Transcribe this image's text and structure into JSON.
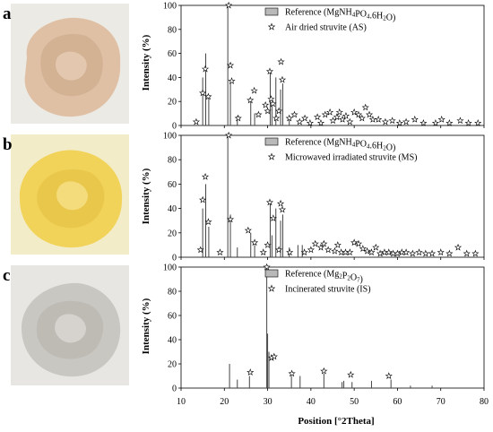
{
  "panels": [
    {
      "letter": "a",
      "color": "#dfc0a4",
      "shade": "#c9a587"
    },
    {
      "letter": "b",
      "color": "#f2d35a",
      "shade": "#e0bb3c"
    },
    {
      "letter": "c",
      "color": "#c9c7c2",
      "shade": "#b3b0aa"
    }
  ],
  "chart_data": {
    "type": "bar",
    "xlabel": "Position [°2Theta]",
    "x_ticks": [
      10,
      20,
      30,
      40,
      50,
      60,
      70,
      80
    ],
    "xlim": [
      10,
      80
    ],
    "y_ticks": [
      0,
      20,
      40,
      60,
      80,
      100
    ],
    "ylabel": "Intensity (%)",
    "plots": [
      {
        "ylim": [
          0,
          100
        ],
        "legend_ref_pre": "Reference (MgNH",
        "legend_ref_sub1": "4",
        "legend_ref_mid": "PO",
        "legend_ref_sub2": "4",
        "legend_ref_post": ".6H",
        "legend_ref_sub3": "2",
        "legend_ref_end": "O)",
        "legend_sample": "Air dried struvite (AS)",
        "reference": {
          "x": [
            15.0,
            15.7,
            16.4,
            20.8,
            21.4,
            23.0,
            26.1,
            27.0,
            30.6,
            31.0,
            31.9,
            33.0,
            33.5,
            35.0
          ],
          "y": [
            40,
            60,
            25,
            100,
            35,
            8,
            20,
            10,
            45,
            18,
            40,
            30,
            35,
            8
          ]
        },
        "sample": {
          "x": [
            13.5,
            15.0,
            15.6,
            16.3,
            21.0,
            21.4,
            21.7,
            23.2,
            26.0,
            26.9,
            27.9,
            29.5,
            30.0,
            30.5,
            30.8,
            31.2,
            32.0,
            32.6,
            33.1,
            33.4,
            35.0,
            36.2,
            37.4,
            38.6,
            39.8,
            41.5,
            42.3,
            43.3,
            44.4,
            45.1,
            46.0,
            46.6,
            47.3,
            48.1,
            49.0,
            50.0,
            51.0,
            51.8,
            52.6,
            53.5,
            54.3,
            55.6,
            57.2,
            58.8,
            60.5,
            62.0,
            64.0,
            66.0,
            68.8,
            70.2,
            72.0,
            74.5,
            76.4,
            78.6
          ],
          "y": [
            3,
            27,
            47,
            24,
            100,
            50,
            37,
            6,
            21,
            29,
            9,
            17,
            12,
            45,
            22,
            18,
            6,
            12,
            53,
            38,
            6,
            9,
            3,
            6,
            2,
            7,
            2,
            9,
            11,
            4,
            7,
            11,
            5,
            8,
            3,
            11,
            9,
            6,
            15,
            9,
            5,
            5,
            3,
            4,
            2,
            3,
            5,
            2,
            2,
            5,
            2,
            4,
            2,
            2
          ]
        }
      },
      {
        "ylim": [
          0,
          100
        ],
        "legend_ref_pre": "Reference (MgNH",
        "legend_ref_sub1": "4",
        "legend_ref_mid": "PO",
        "legend_ref_sub2": "4",
        "legend_ref_post": ".6H",
        "legend_ref_sub3": "2",
        "legend_ref_end": "O)",
        "legend_sample": "Microwaved irradiated struvite (MS)",
        "reference": {
          "x": [
            15.0,
            15.7,
            16.4,
            20.8,
            21.4,
            23.0,
            26.1,
            27.0,
            30.6,
            31.0,
            31.9,
            33.0,
            33.5,
            35.0,
            37.0,
            38.0
          ],
          "y": [
            40,
            60,
            25,
            100,
            35,
            8,
            20,
            10,
            45,
            18,
            40,
            30,
            35,
            8,
            10,
            10
          ]
        },
        "sample": {
          "x": [
            14.5,
            15.0,
            15.6,
            16.3,
            19.0,
            21.0,
            21.4,
            25.5,
            27.0,
            29.0,
            30.0,
            30.5,
            31.3,
            32.6,
            33.0,
            33.4,
            35.1,
            38.5,
            40.0,
            41.0,
            42.3,
            43.0,
            44.0,
            45.5,
            46.2,
            47.0,
            48.0,
            49.0,
            50.0,
            51.0,
            52.0,
            53.0,
            54.0,
            55.0,
            56.0,
            57.0,
            58.0,
            59.0,
            60.0,
            61.0,
            62.0,
            63.5,
            65.0,
            66.5,
            68.0,
            70.0,
            72.0,
            74.0,
            76.0,
            78.0
          ],
          "y": [
            6,
            47,
            66,
            29,
            4,
            100,
            31,
            22,
            12,
            4,
            10,
            45,
            32,
            6,
            44,
            39,
            4,
            4,
            6,
            11,
            8,
            11,
            6,
            5,
            10,
            4,
            4,
            4,
            12,
            11,
            7,
            5,
            4,
            8,
            3,
            4,
            4,
            3,
            3,
            4,
            4,
            3,
            4,
            3,
            3,
            4,
            3,
            8,
            3,
            3
          ]
        }
      },
      {
        "ylim": [
          0,
          100
        ],
        "legend_ref_pre": "Reference (Mg",
        "legend_ref_sub1": "2",
        "legend_ref_mid": "P",
        "legend_ref_sub2": "2",
        "legend_ref_post": "O",
        "legend_ref_sub3": "7",
        "legend_ref_end": ")",
        "legend_sample": "Incinerated struvite (IS)",
        "reference": {
          "x": [
            21.2,
            23.0,
            25.8,
            29.8,
            30.0,
            30.3,
            35.5,
            37.5,
            43.0,
            47.2,
            47.6,
            49.5,
            54.0,
            58.5,
            63.0,
            68.0
          ],
          "y": [
            20,
            7,
            10,
            100,
            45,
            30,
            10,
            10,
            12,
            5,
            6,
            5,
            6,
            7,
            2,
            2
          ]
        },
        "sample": {
          "x": [
            26.0,
            29.8,
            30.9,
            31.5,
            35.6,
            43.0,
            49.2,
            58.0
          ],
          "y": [
            13,
            100,
            25,
            26,
            12,
            14,
            11,
            10
          ]
        }
      }
    ]
  }
}
